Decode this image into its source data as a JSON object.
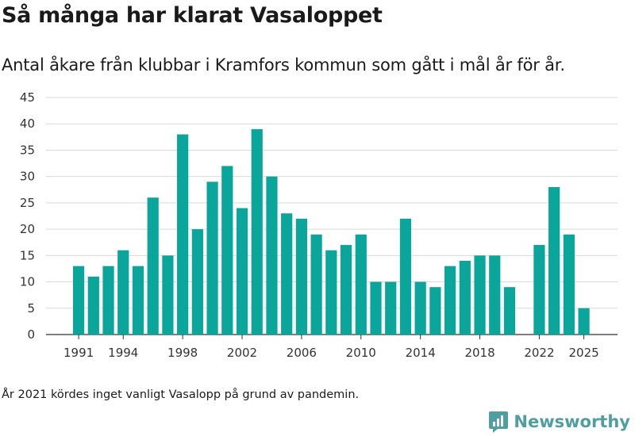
{
  "title": "Så många har klarat Vasaloppet",
  "subtitle": "Antal åkare från klubbar i Kramfors kommun som gått i mål år för år.",
  "footnote": "År 2021 kördes inget vanligt Vasalopp på grund av pandemin.",
  "brand": {
    "name": "Newsworthy",
    "icon": "newsworthy-logo-icon",
    "color": "#4f9ea0"
  },
  "colors": {
    "bar": "#0aa59b",
    "grid": "#d9d9d9",
    "axis": "#333333"
  },
  "chart_data": {
    "type": "bar",
    "title": "Så många har klarat Vasaloppet",
    "xlabel": "",
    "ylabel": "",
    "ylim": [
      0,
      45
    ],
    "yticks": [
      "0",
      "5",
      "10",
      "15",
      "20",
      "25",
      "30",
      "35",
      "40",
      "45"
    ],
    "xtick_labels": [
      "1991",
      "1994",
      "1998",
      "2002",
      "2006",
      "2010",
      "2014",
      "2018",
      "2022",
      "2025"
    ],
    "categories": [
      "1991",
      "1992",
      "1993",
      "1994",
      "1995",
      "1996",
      "1997",
      "1998",
      "1999",
      "2000",
      "2001",
      "2002",
      "2003",
      "2004",
      "2005",
      "2006",
      "2007",
      "2008",
      "2009",
      "2010",
      "2011",
      "2012",
      "2013",
      "2014",
      "2015",
      "2016",
      "2017",
      "2018",
      "2019",
      "2020",
      "2021",
      "2022",
      "2023",
      "2024",
      "2025"
    ],
    "values": [
      13,
      11,
      13,
      16,
      13,
      26,
      15,
      38,
      20,
      29,
      32,
      24,
      39,
      30,
      23,
      22,
      19,
      16,
      17,
      19,
      10,
      10,
      22,
      10,
      9,
      13,
      14,
      15,
      15,
      9,
      null,
      17,
      28,
      19,
      5
    ]
  }
}
